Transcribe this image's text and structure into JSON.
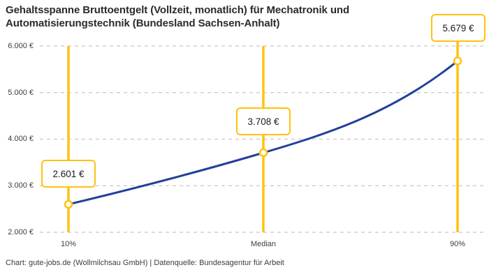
{
  "title": "Gehaltsspanne Bruttoentgelt (Vollzeit, monatlich) für Mechatronik und Automatisierungstechnik (Bundesland Sachsen-Anhalt)",
  "footer": "Chart: gute-jobs.de (Wollmilchsau GmbH) | Datenquelle: Bundesagentur für Arbeit",
  "colors": {
    "accent_yellow": "#FFC20E",
    "line_blue": "#20409A",
    "grid": "#c8c8c8",
    "title_text": "#2b2b2b",
    "axis_text": "#3d3d3d",
    "label_text": "#1a1a1a",
    "background": "#ffffff"
  },
  "chart_data": {
    "type": "line",
    "title": "Gehaltsspanne Bruttoentgelt (Vollzeit, monatlich) für Mechatronik und Automatisierungstechnik (Bundesland Sachsen-Anhalt)",
    "categories": [
      "10%",
      "Median",
      "90%"
    ],
    "values": [
      2601,
      3708,
      5679
    ],
    "value_labels": [
      "2.601 €",
      "3.708 €",
      "5.679 €"
    ],
    "xlabel": "",
    "ylabel": "",
    "ylim": [
      2000,
      6000
    ],
    "y_tick_values": [
      2000,
      3000,
      4000,
      5000,
      6000
    ],
    "y_ticks": [
      "2.000 €",
      "3.000 €",
      "4.000 €",
      "5.000 €",
      "6.000 €"
    ],
    "grid": true,
    "gridline_style": "dashed",
    "legend": false,
    "marker_style": "open-circle",
    "annotation_source": "Chart: gute-jobs.de (Wollmilchsau GmbH) | Datenquelle: Bundesagentur für Arbeit"
  }
}
